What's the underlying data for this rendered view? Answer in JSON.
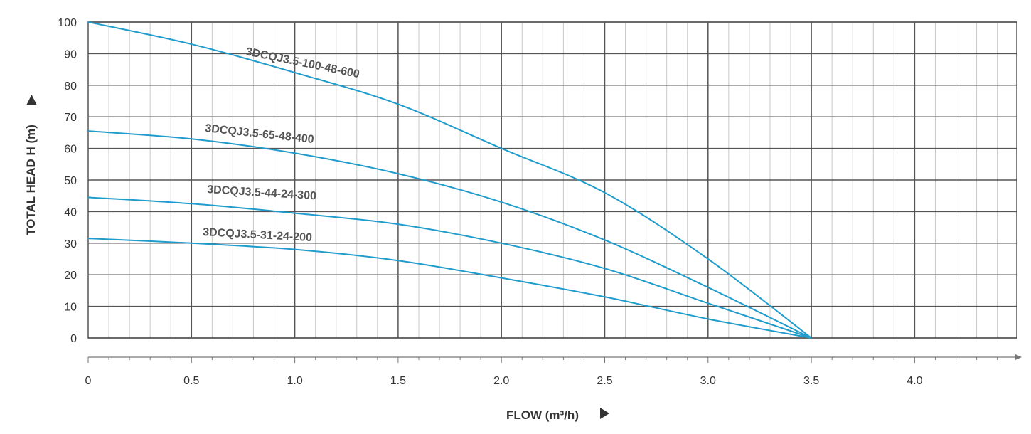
{
  "chart_data": {
    "type": "line",
    "xlabel": "FLOW (m³/h)",
    "ylabel": "TOTAL HEAD H (m)",
    "xlim": [
      0,
      4.5
    ],
    "ylim": [
      0,
      100
    ],
    "x_ticks": [
      "0",
      "0.5",
      "1.0",
      "1.5",
      "2.0",
      "2.5",
      "3.0",
      "3.5",
      "4.0"
    ],
    "y_ticks": [
      "0",
      "10",
      "20",
      "30",
      "40",
      "50",
      "60",
      "70",
      "80",
      "90",
      "100"
    ],
    "grid": true,
    "series": [
      {
        "name": "3DCQJ3.5-100-48-600",
        "x": [
          0,
          0.5,
          1.0,
          1.5,
          2.0,
          2.5,
          3.0,
          3.5
        ],
        "y": [
          100,
          93,
          84,
          74,
          60,
          46,
          25,
          0
        ]
      },
      {
        "name": "3DCQJ3.5-65-48-400",
        "x": [
          0,
          0.5,
          1.0,
          1.5,
          2.0,
          2.5,
          3.0,
          3.5
        ],
        "y": [
          65.5,
          63,
          58.5,
          52,
          43,
          31,
          16,
          0
        ]
      },
      {
        "name": "3DCQJ3.5-44-24-300",
        "x": [
          0,
          0.5,
          1.0,
          1.5,
          2.0,
          2.5,
          3.0,
          3.5
        ],
        "y": [
          44.5,
          42.5,
          39.5,
          36,
          30,
          22,
          11,
          0
        ]
      },
      {
        "name": "3DCQJ3.5-31-24-200",
        "x": [
          0,
          0.5,
          1.0,
          1.5,
          2.0,
          2.5,
          3.0,
          3.5
        ],
        "y": [
          31.5,
          30,
          28,
          24.5,
          19,
          13,
          6,
          0
        ]
      }
    ],
    "colors": {
      "curve": "#1f9ccc",
      "grid_major": "#555555",
      "grid_minor": "#c8c8c8",
      "text": "#333333"
    }
  }
}
